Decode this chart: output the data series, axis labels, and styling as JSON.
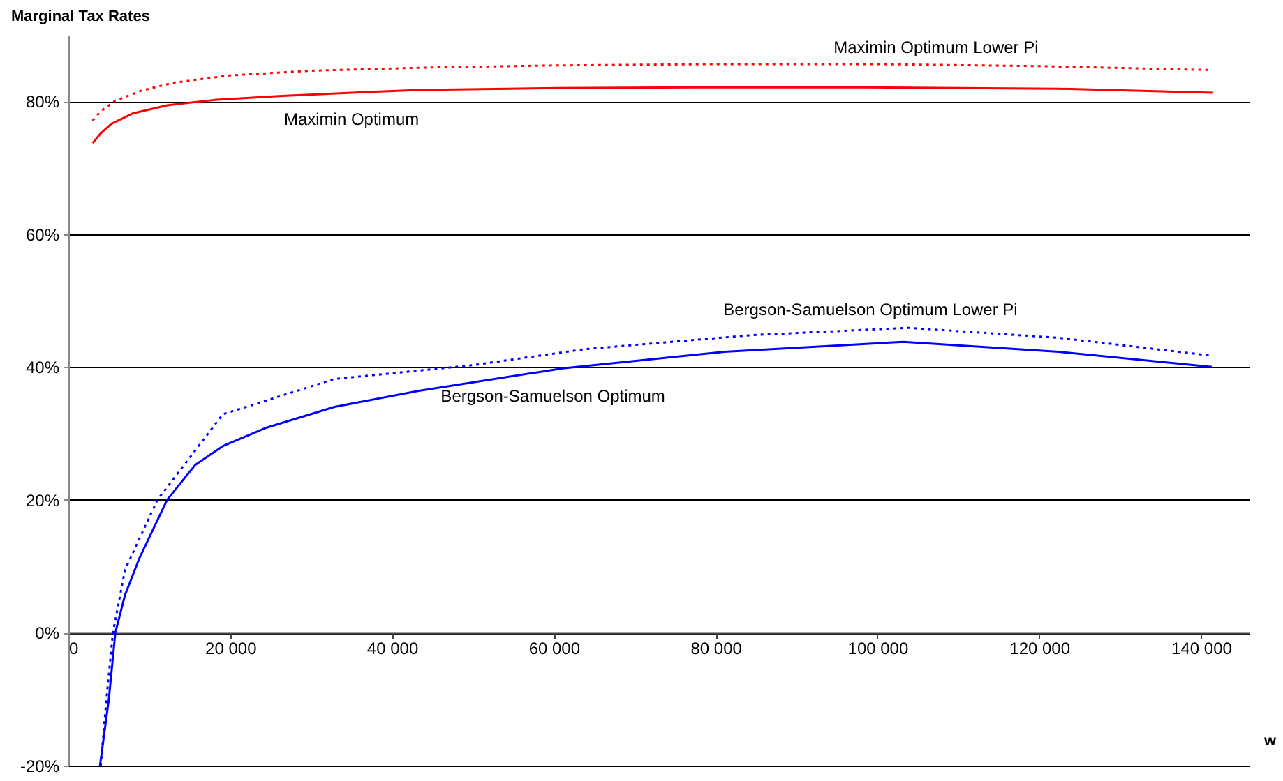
{
  "chart_data": {
    "type": "line",
    "title": "Marginal Tax Rates",
    "xlabel": "w",
    "xlim": [
      0,
      146000
    ],
    "ylim": [
      -20,
      90
    ],
    "xticks": [
      0,
      {
        "value": 20000,
        "label": "20 000"
      },
      {
        "value": 40000,
        "label": "40 000"
      },
      {
        "value": 60000,
        "label": "60 000"
      },
      {
        "value": 80000,
        "label": "80 000"
      },
      {
        "value": 100000,
        "label": "100 000"
      },
      {
        "value": 120000,
        "label": "120 000"
      },
      {
        "value": 140000,
        "label": "140 000"
      }
    ],
    "yticks": [
      {
        "value": -20,
        "label": "-20%"
      },
      {
        "value": 0,
        "label": "0%"
      },
      {
        "value": 20,
        "label": "20%"
      },
      {
        "value": 40,
        "label": "40%"
      },
      {
        "value": 60,
        "label": "60%"
      },
      {
        "value": 80,
        "label": "80%"
      }
    ],
    "grid": "y",
    "legend": false,
    "marker": "none",
    "series": [
      {
        "name": "Maximin Optimum",
        "color": "#ff0000",
        "line_style": "solid",
        "x": [
          3000,
          4000,
          5300,
          8000,
          12200,
          18000,
          26000,
          35000,
          43200,
          60400,
          77700,
          98300,
          110000,
          122400,
          141500
        ],
        "values": [
          73.7,
          75.2,
          76.6,
          78.2,
          79.4,
          80.2,
          80.8,
          81.3,
          81.7,
          82.0,
          82.1,
          82.1,
          82.0,
          81.9,
          81.3
        ]
      },
      {
        "name": "Maximin Optimum Lower Pi",
        "color": "#ff0000",
        "line_style": "dotted",
        "x": [
          3000,
          4000,
          5800,
          9000,
          13000,
          20000,
          30000,
          45000,
          60000,
          80000,
          100000,
          120000,
          141400
        ],
        "values": [
          77.1,
          78.5,
          80.1,
          81.6,
          82.8,
          83.9,
          84.6,
          85.1,
          85.4,
          85.6,
          85.6,
          85.3,
          84.7
        ]
      },
      {
        "name": "Bergson-Samuelson Optimum",
        "color": "#0000ff",
        "line_style": "solid",
        "x": [
          3900,
          5000,
          5800,
          7000,
          8800,
          12200,
          15700,
          19100,
          24300,
          32900,
          43200,
          61100,
          81100,
          103200,
          122400,
          141400
        ],
        "values": [
          -20,
          -10,
          0,
          5.7,
          11.3,
          20,
          25.3,
          28.1,
          30.8,
          34.0,
          36.4,
          39.8,
          42.3,
          43.8,
          42.3,
          40.0
        ]
      },
      {
        "name": "Bergson-Samuelson Optimum Lower Pi",
        "color": "#0000ff",
        "line_style": "dotted",
        "x": [
          4000,
          4700,
          5500,
          7000,
          11000,
          19100,
          32900,
          50100,
          63900,
          84500,
          103800,
          122400,
          141400
        ],
        "values": [
          -20,
          -10,
          0,
          9.5,
          20,
          32.9,
          38.2,
          40.3,
          42.7,
          44.8,
          45.9,
          44.4,
          41.7
        ]
      }
    ]
  }
}
